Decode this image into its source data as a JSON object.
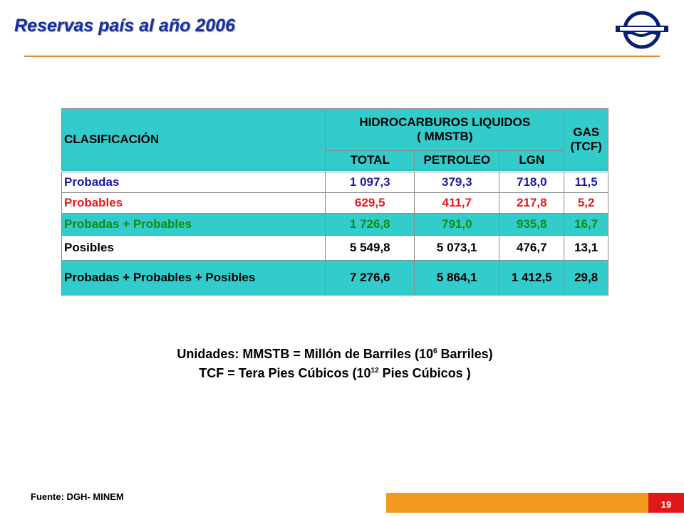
{
  "header": {
    "title": "Reservas  país al año 2006"
  },
  "table": {
    "col_clasificacion": "CLASIFICACIÓN",
    "col_liquidos_line1": "HIDROCARBUROS LIQUIDOS",
    "col_liquidos_line2": "( MMSTB)",
    "col_gas_line1": "GAS",
    "col_gas_line2": "(TCF)",
    "sub_total": "TOTAL",
    "sub_petroleo": "PETROLEO",
    "sub_lgn": "LGN",
    "rows": [
      {
        "label": "Probadas",
        "total": "1 097,3",
        "petroleo": "379,3",
        "lgn": "718,0",
        "gas": "11,5"
      },
      {
        "label": "Probables",
        "total": "629,5",
        "petroleo": "411,7",
        "lgn": "217,8",
        "gas": "5,2"
      },
      {
        "label": "Probadas + Probables",
        "total": "1 726,8",
        "petroleo": "791,0",
        "lgn": "935,8",
        "gas": "16,7"
      },
      {
        "label": "Posibles",
        "total": "5 549,8",
        "petroleo": "5 073,1",
        "lgn": "476,7",
        "gas": "13,1"
      },
      {
        "label": "Probadas + Probables + Posibles",
        "total": "7 276,6",
        "petroleo": "5 864,1",
        "lgn": "1 412,5",
        "gas": "29,8"
      }
    ]
  },
  "units": {
    "line1_a": "Unidades: MMSTB = Millón de Barriles (10",
    "line1_sup": "6",
    "line1_b": " Barriles)",
    "line2_a": "TCF = Tera Pies Cúbicos (10",
    "line2_sup": "12",
    "line2_b": " Pies Cúbicos )"
  },
  "footer": {
    "source": "Fuente: DGH- MINEM",
    "page_number": "19"
  },
  "colors": {
    "title": "#1530a6",
    "teal": "#33cccc",
    "probadas": "#1a1aa6",
    "probables": "#e81818",
    "probadas_probables": "#138a13",
    "bar": "#f39a1e",
    "page_badge": "#e01818"
  },
  "logo": {
    "icon": "company-logo"
  }
}
